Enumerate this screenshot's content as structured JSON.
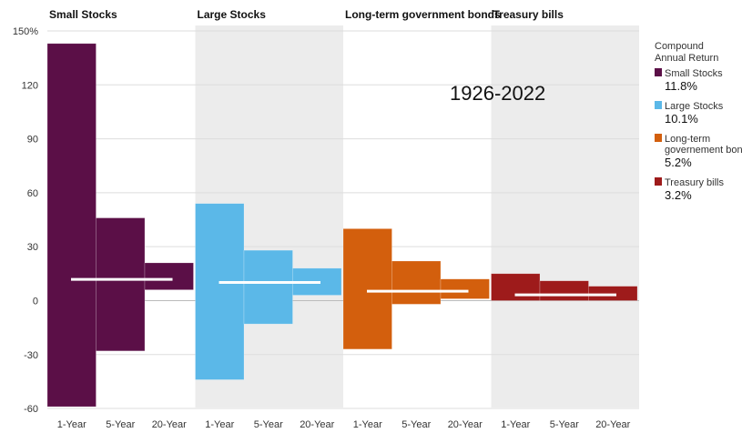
{
  "chart_data": {
    "type": "bar",
    "title": "",
    "annotation": "1926-2022",
    "y_tick_labels": [
      "150%",
      "120",
      "90",
      "60",
      "30",
      "0",
      "-30",
      "-60"
    ],
    "y_ticks": [
      150,
      120,
      90,
      60,
      30,
      0,
      -30,
      -60
    ],
    "ylim": [
      -62,
      150
    ],
    "categories": [
      "1-Year",
      "5-Year",
      "20-Year"
    ],
    "legend": {
      "title_line1": "Compound",
      "title_line2": "Annual Return",
      "position": "right"
    },
    "grid": true,
    "series": [
      {
        "name": "Small Stocks",
        "legend_label": [
          "Small Stocks"
        ],
        "compound_return_label": "11.8%",
        "compound_return": 11.8,
        "color": "#5b0f47",
        "shaded": false,
        "ranges": [
          {
            "min": -59,
            "max": 143
          },
          {
            "min": -28,
            "max": 46
          },
          {
            "min": 6,
            "max": 21
          }
        ]
      },
      {
        "name": "Large Stocks",
        "legend_label": [
          "Large Stocks"
        ],
        "compound_return_label": "10.1%",
        "compound_return": 10.1,
        "color": "#5bb8e8",
        "shaded": true,
        "ranges": [
          {
            "min": -44,
            "max": 54
          },
          {
            "min": -13,
            "max": 28
          },
          {
            "min": 3,
            "max": 18
          }
        ]
      },
      {
        "name": "Long-term government bonds",
        "legend_label": [
          "Long-term",
          "governement bonds"
        ],
        "compound_return_label": "5.2%",
        "compound_return": 5.2,
        "color": "#d35f0d",
        "shaded": false,
        "ranges": [
          {
            "min": -27,
            "max": 40
          },
          {
            "min": -2,
            "max": 22
          },
          {
            "min": 1,
            "max": 12
          }
        ]
      },
      {
        "name": "Treasury bills",
        "legend_label": [
          "Treasury bills"
        ],
        "compound_return_label": "3.2%",
        "compound_return": 3.2,
        "color": "#9e1b1b",
        "shaded": true,
        "ranges": [
          {
            "min": 0,
            "max": 15
          },
          {
            "min": 0,
            "max": 11
          },
          {
            "min": 0,
            "max": 8
          }
        ]
      }
    ]
  }
}
